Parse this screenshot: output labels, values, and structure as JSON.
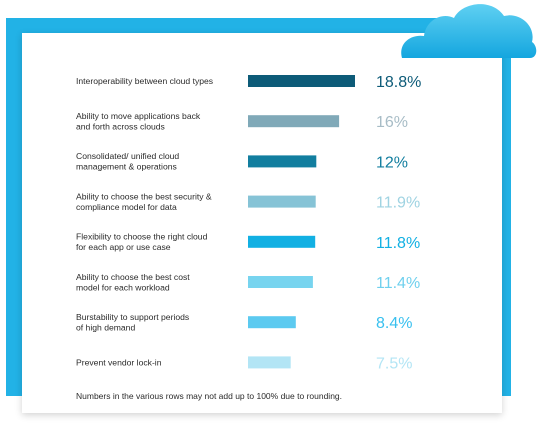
{
  "chart_data": {
    "type": "bar",
    "orientation": "horizontal",
    "categories": [
      [
        "Interoperability between cloud types"
      ],
      [
        "Ability to move applications back",
        "and forth across clouds"
      ],
      [
        "Consolidated/ unified cloud",
        "management & operations"
      ],
      [
        "Ability to choose the best security &",
        "compliance model for data"
      ],
      [
        "Flexibility to choose the right cloud",
        "for each app or use case"
      ],
      [
        "Ability to choose the best cost",
        "model for each workload"
      ],
      [
        "Burstability to support periods",
        "of high demand"
      ],
      [
        "Prevent vendor lock-in"
      ]
    ],
    "values": [
      18.8,
      16,
      12,
      11.9,
      11.8,
      11.4,
      8.4,
      7.5
    ],
    "value_labels": [
      "18.8%",
      "16%",
      "12%",
      "11.9%",
      "11.8%",
      "11.4%",
      "8.4%",
      "7.5%"
    ],
    "bar_colors": [
      "#0d5b78",
      "#80a9b8",
      "#127e9f",
      "#86c3d6",
      "#12b0e3",
      "#77d4ef",
      "#5ccaf0",
      "#b3e5f5"
    ],
    "value_colors": [
      "#0d5b78",
      "#a7bcc6",
      "#127e9f",
      "#9fd3e2",
      "#12b0e3",
      "#6fd0ee",
      "#38c0ef",
      "#b3e5f5"
    ]
  },
  "footnote": "Numbers in the various rows may not add up to 100% due to rounding.",
  "colors": {
    "accent": "#22b2e6",
    "cloud": "#27b3e6"
  }
}
